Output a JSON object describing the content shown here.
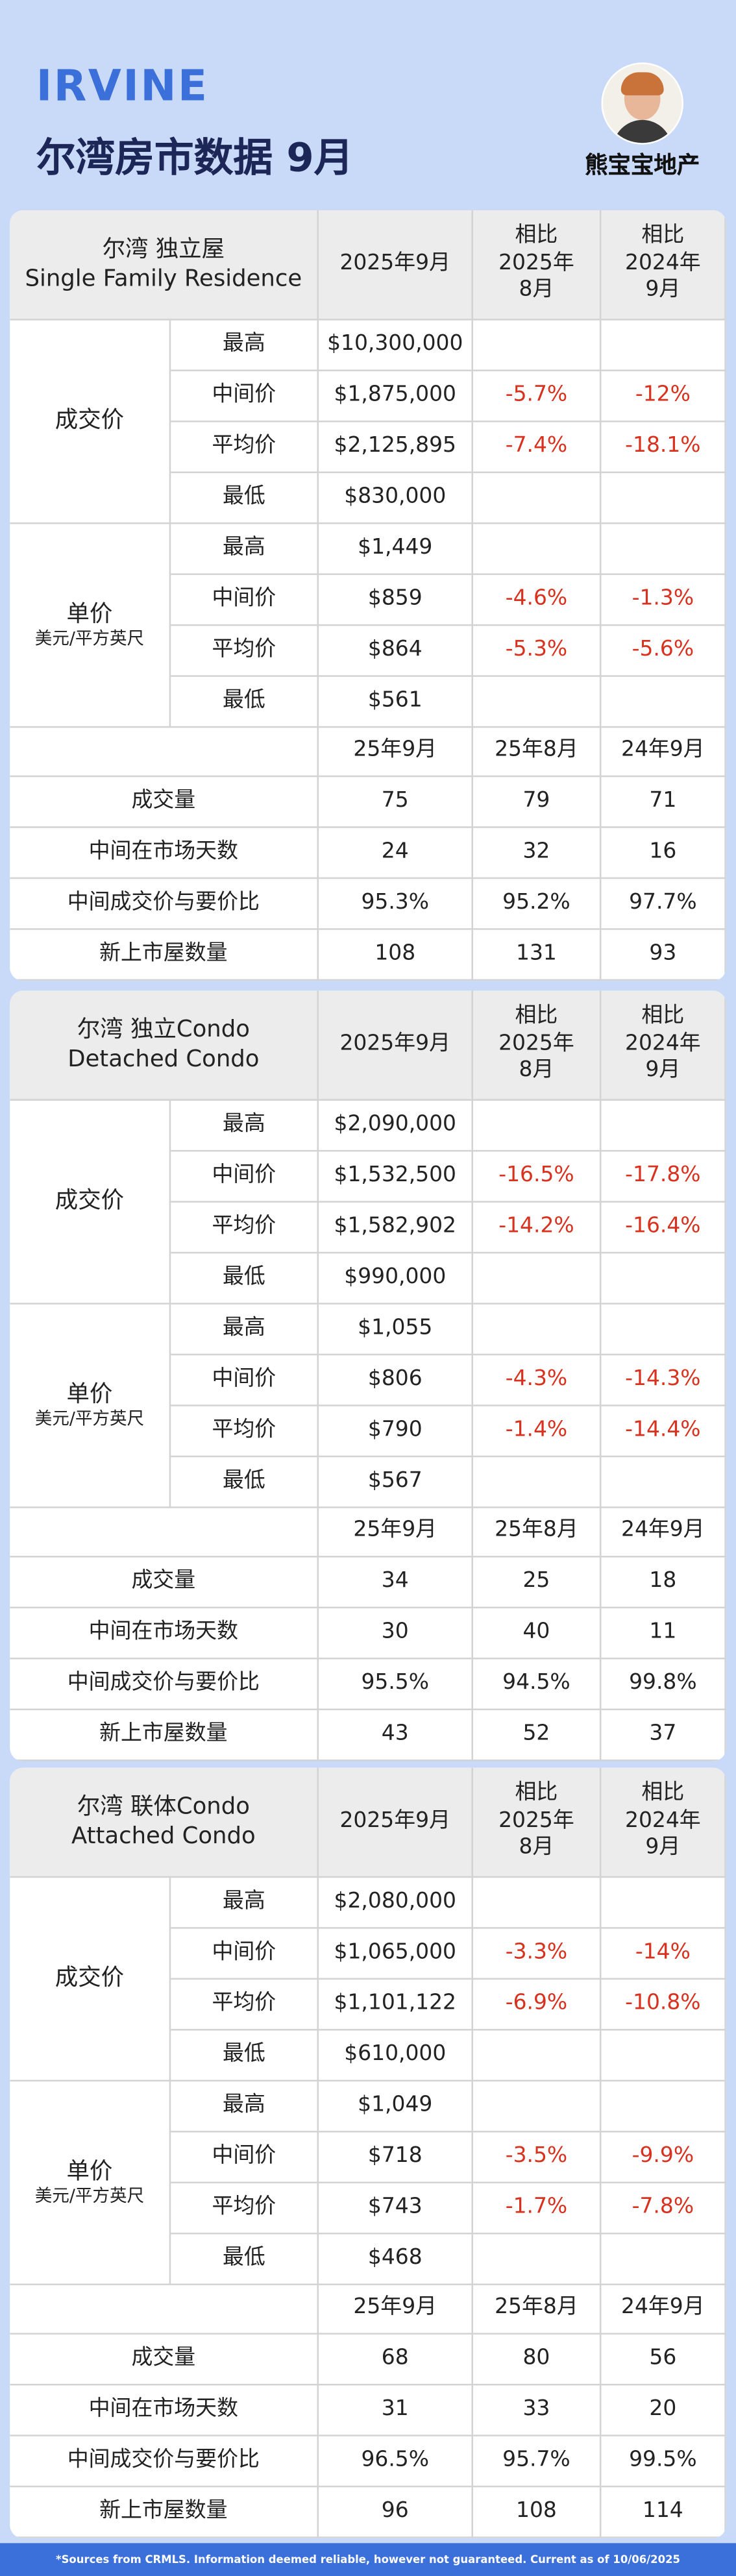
{
  "header": {
    "brand": "IRVINE",
    "title": "尔湾房市数据 9月",
    "agent": "熊宝宝地产"
  },
  "sections": [
    {
      "name": [
        "尔湾  独立屋",
        "Single Family Residence"
      ],
      "columns": {
        "current": "2025年9月",
        "mom": [
          "相比",
          "2025年",
          "8月"
        ],
        "yoy": [
          "相比",
          "2024年",
          "9月"
        ]
      },
      "price": {
        "label": "成交价",
        "rows": [
          [
            "最高",
            "$10,300,000"
          ],
          [
            "中间价",
            "$1,875,000",
            "-5.7%",
            "-12%"
          ],
          [
            "平均价",
            "$2,125,895",
            "-7.4%",
            "-18.1%"
          ],
          [
            "最低",
            "$830,000"
          ]
        ]
      },
      "unit": {
        "label": "单价",
        "sublabel": "美元/平方英尺",
        "rows": [
          [
            "最高",
            "$1,449"
          ],
          [
            "中间价",
            "$859",
            "-4.6%",
            "-1.3%"
          ],
          [
            "平均价",
            "$864",
            "-5.3%",
            "-5.6%"
          ],
          [
            "最低",
            "$561"
          ]
        ]
      },
      "stats": {
        "header": [
          "25年9月",
          "25年8月",
          "24年9月"
        ],
        "rows": [
          [
            "成交量",
            "75",
            "79",
            "71"
          ],
          [
            "中间在市场天数",
            "24",
            "32",
            "16"
          ],
          [
            "中间成交价与要价比",
            "95.3%",
            "95.2%",
            "97.7%"
          ],
          [
            "新上市屋数量",
            "108",
            "131",
            "93"
          ]
        ]
      }
    },
    {
      "name": [
        "尔湾  独立Condo",
        "Detached Condo"
      ],
      "columns": {
        "current": "2025年9月",
        "mom": [
          "相比",
          "2025年",
          "8月"
        ],
        "yoy": [
          "相比",
          "2024年",
          "9月"
        ]
      },
      "price": {
        "label": "成交价",
        "rows": [
          [
            "最高",
            "$2,090,000"
          ],
          [
            "中间价",
            "$1,532,500",
            "-16.5%",
            "-17.8%"
          ],
          [
            "平均价",
            "$1,582,902",
            "-14.2%",
            "-16.4%"
          ],
          [
            "最低",
            "$990,000"
          ]
        ]
      },
      "unit": {
        "label": "单价",
        "sublabel": "美元/平方英尺",
        "rows": [
          [
            "最高",
            "$1,055"
          ],
          [
            "中间价",
            "$806",
            "-4.3%",
            "-14.3%"
          ],
          [
            "平均价",
            "$790",
            "-1.4%",
            "-14.4%"
          ],
          [
            "最低",
            "$567"
          ]
        ]
      },
      "stats": {
        "header": [
          "25年9月",
          "25年8月",
          "24年9月"
        ],
        "rows": [
          [
            "成交量",
            "34",
            "25",
            "18"
          ],
          [
            "中间在市场天数",
            "30",
            "40",
            "11"
          ],
          [
            "中间成交价与要价比",
            "95.5%",
            "94.5%",
            "99.8%"
          ],
          [
            "新上市屋数量",
            "43",
            "52",
            "37"
          ]
        ]
      }
    },
    {
      "name": [
        "尔湾  联体Condo",
        "Attached Condo"
      ],
      "columns": {
        "current": "2025年9月",
        "mom": [
          "相比",
          "2025年",
          "8月"
        ],
        "yoy": [
          "相比",
          "2024年",
          "9月"
        ]
      },
      "price": {
        "label": "成交价",
        "rows": [
          [
            "最高",
            "$2,080,000"
          ],
          [
            "中间价",
            "$1,065,000",
            "-3.3%",
            "-14%"
          ],
          [
            "平均价",
            "$1,101,122",
            "-6.9%",
            "-10.8%"
          ],
          [
            "最低",
            "$610,000"
          ]
        ]
      },
      "unit": {
        "label": "单价",
        "sublabel": "美元/平方英尺",
        "rows": [
          [
            "最高",
            "$1,049"
          ],
          [
            "中间价",
            "$718",
            "-3.5%",
            "-9.9%"
          ],
          [
            "平均价",
            "$743",
            "-1.7%",
            "-7.8%"
          ],
          [
            "最低",
            "$468"
          ]
        ]
      },
      "stats": {
        "header": [
          "25年9月",
          "25年8月",
          "24年9月"
        ],
        "rows": [
          [
            "成交量",
            "68",
            "80",
            "56"
          ],
          [
            "中间在市场天数",
            "31",
            "33",
            "20"
          ],
          [
            "中间成交价与要价比",
            "96.5%",
            "95.7%",
            "99.5%"
          ],
          [
            "新上市屋数量",
            "96",
            "108",
            "114"
          ]
        ]
      }
    }
  ],
  "footer": "*Sources from CRMLS. Information deemed reliable, however not guaranteed. Current as of 10/06/2025"
}
